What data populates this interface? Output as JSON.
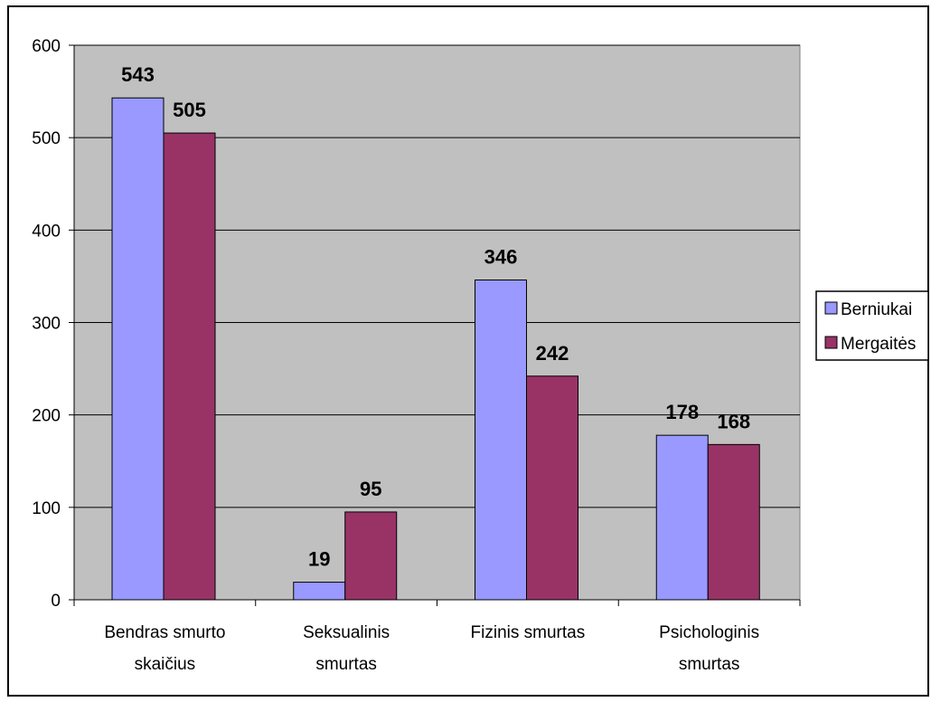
{
  "chart_data": {
    "type": "bar",
    "categories": [
      [
        "Bendras smurto",
        "skaičius"
      ],
      [
        "Seksualinis",
        "smurtas"
      ],
      [
        "Fizinis smurtas"
      ],
      [
        "Psichologinis",
        "smurtas"
      ]
    ],
    "series": [
      {
        "name": "Berniukai",
        "values": [
          543,
          19,
          346,
          178
        ],
        "color": "#9999ff"
      },
      {
        "name": "Mergaitės",
        "values": [
          505,
          95,
          242,
          168
        ],
        "color": "#993366"
      }
    ],
    "ylim": [
      0,
      600
    ],
    "yticks": [
      0,
      100,
      200,
      300,
      400,
      500,
      600
    ],
    "grid": true,
    "plot_background": "#c0c0c0",
    "legend_position": "right",
    "data_labels": true,
    "title": "",
    "xlabel": "",
    "ylabel": ""
  }
}
